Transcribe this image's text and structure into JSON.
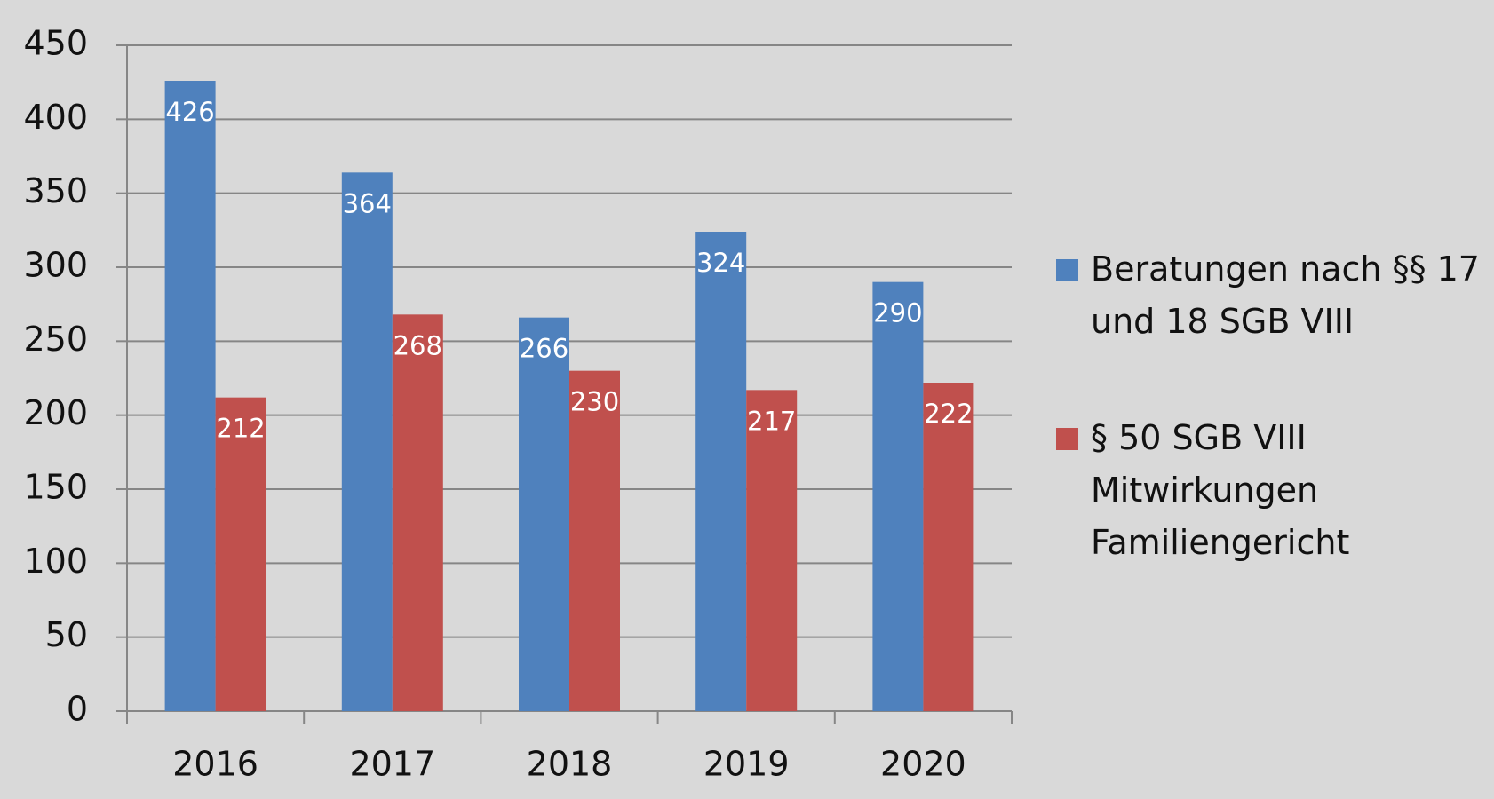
{
  "chart_data": {
    "type": "bar",
    "categories": [
      "2016",
      "2017",
      "2018",
      "2019",
      "2020"
    ],
    "series": [
      {
        "name": "Beratungen nach §§ 17 und 18 SGB VIII",
        "color": "#4f81bd",
        "values": [
          426,
          364,
          266,
          324,
          290
        ]
      },
      {
        "name": "§ 50 SGB VIII Mitwirkungen Familiengericht",
        "color": "#c0504d",
        "values": [
          212,
          268,
          230,
          217,
          222
        ]
      }
    ],
    "ylim": [
      0,
      450
    ],
    "yticks": [
      0,
      50,
      100,
      150,
      200,
      250,
      300,
      350,
      400,
      450
    ],
    "grid": true,
    "legend": "right"
  }
}
